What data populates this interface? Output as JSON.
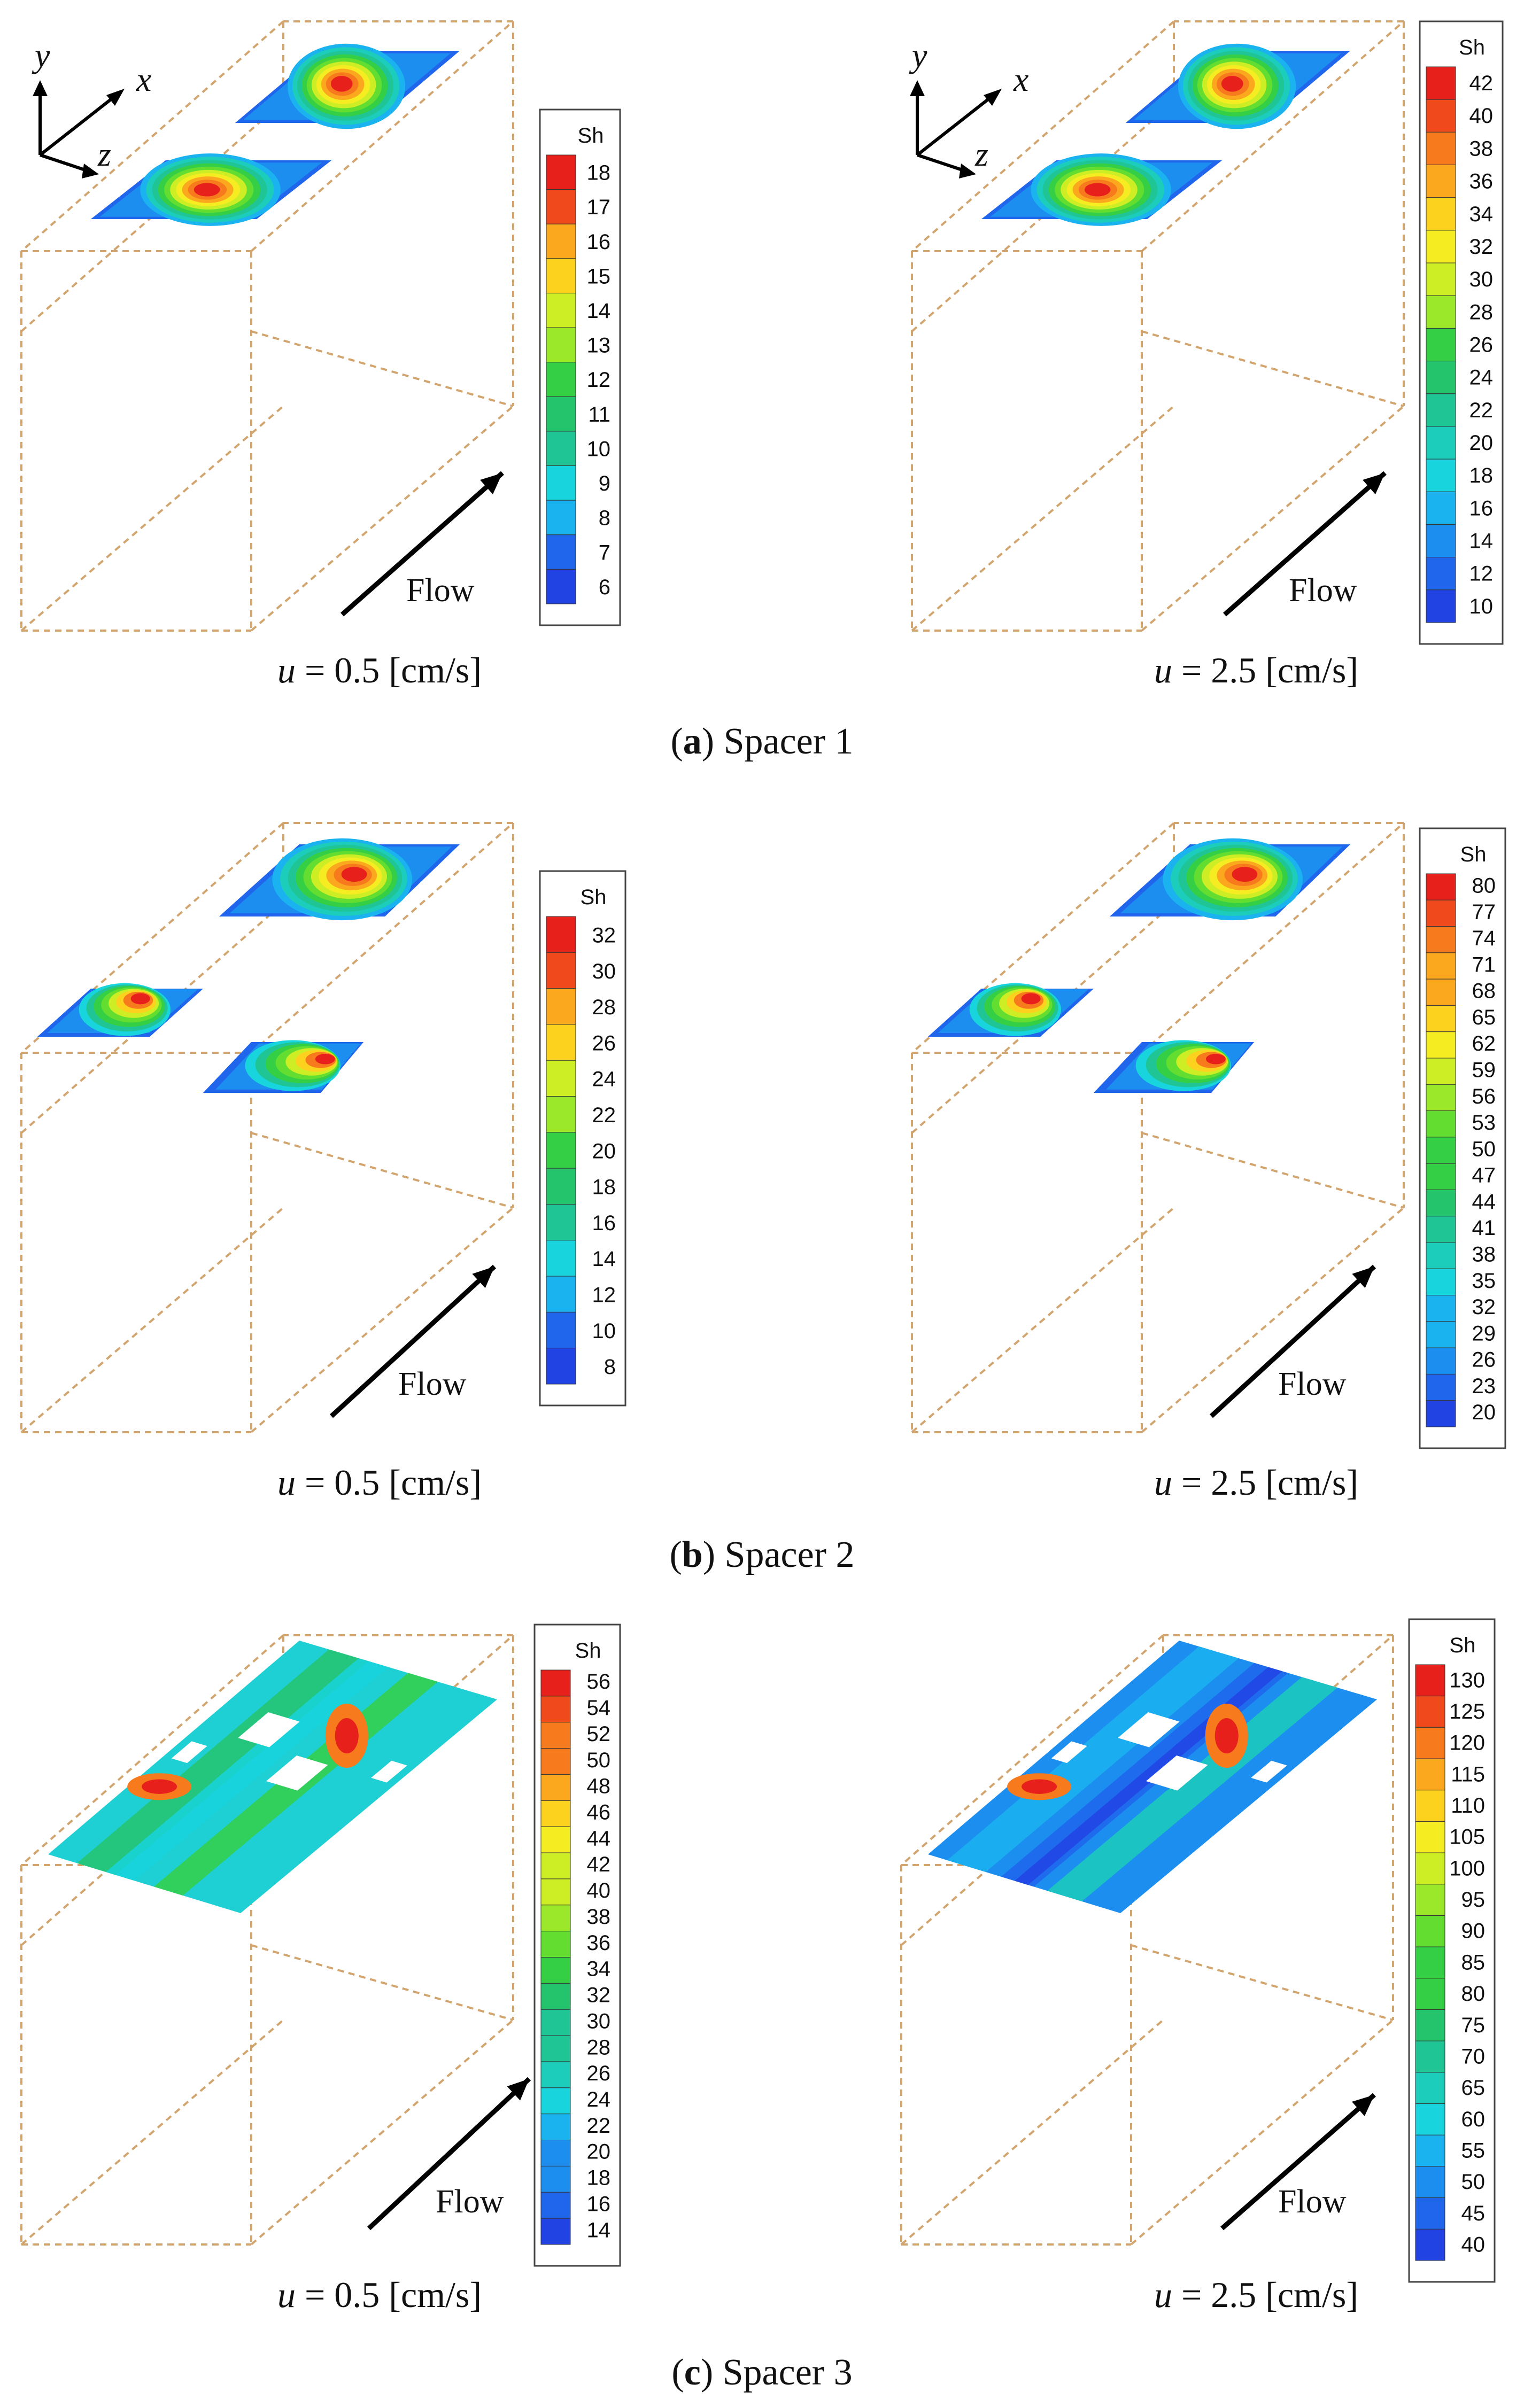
{
  "figure": {
    "panels": [
      {
        "id": "spacer1",
        "caption_letter": "a",
        "caption_text": " Spacer 1",
        "cases": [
          {
            "u_prefix": "u",
            "u_text": " = 0.5 [cm/s]",
            "legend_title": "Sh",
            "legend_values": [
              "18",
              "17",
              "16",
              "15",
              "14",
              "13",
              "12",
              "11",
              "10",
              "9",
              "8",
              "7",
              "6"
            ]
          },
          {
            "u_prefix": "u",
            "u_text": " = 2.5 [cm/s]",
            "legend_title": "Sh",
            "legend_values": [
              "42",
              "40",
              "38",
              "36",
              "34",
              "32",
              "30",
              "28",
              "26",
              "24",
              "22",
              "20",
              "18",
              "16",
              "14",
              "12",
              "10"
            ]
          }
        ]
      },
      {
        "id": "spacer2",
        "caption_letter": "b",
        "caption_text": " Spacer 2",
        "cases": [
          {
            "u_prefix": "u",
            "u_text": " = 0.5 [cm/s]",
            "legend_title": "Sh",
            "legend_values": [
              "32",
              "30",
              "28",
              "26",
              "24",
              "22",
              "20",
              "18",
              "16",
              "14",
              "12",
              "10",
              "8"
            ]
          },
          {
            "u_prefix": "u",
            "u_text": " = 2.5 [cm/s]",
            "legend_title": "Sh",
            "legend_values": [
              "80",
              "77",
              "74",
              "71",
              "68",
              "65",
              "62",
              "59",
              "56",
              "53",
              "50",
              "47",
              "44",
              "41",
              "38",
              "35",
              "32",
              "29",
              "26",
              "23",
              "20"
            ]
          }
        ]
      },
      {
        "id": "spacer3",
        "caption_letter": "c",
        "caption_text": " Spacer 3",
        "cases": [
          {
            "u_prefix": "u",
            "u_text": " = 0.5 [cm/s]",
            "legend_title": "Sh",
            "legend_values": [
              "56",
              "54",
              "52",
              "50",
              "48",
              "46",
              "44",
              "42",
              "40",
              "38",
              "36",
              "34",
              "32",
              "30",
              "28",
              "26",
              "24",
              "22",
              "20",
              "18",
              "16",
              "14"
            ]
          },
          {
            "u_prefix": "u",
            "u_text": " = 2.5 [cm/s]",
            "legend_title": "Sh",
            "legend_values": [
              "130",
              "125",
              "120",
              "115",
              "110",
              "105",
              "100",
              "95",
              "90",
              "85",
              "80",
              "75",
              "70",
              "65",
              "60",
              "55",
              "50",
              "45",
              "40"
            ]
          }
        ]
      }
    ],
    "flow_label": "Flow",
    "axis_labels": {
      "x": "x",
      "y": "y",
      "z": "z"
    },
    "colormap": [
      "#e8201c",
      "#f04a1c",
      "#f77a1c",
      "#fba81e",
      "#fdd21f",
      "#f6ec22",
      "#cdee25",
      "#9be82a",
      "#63dd30",
      "#35cf45",
      "#24c46c",
      "#1fc595",
      "#1ccdbb",
      "#18d4dc",
      "#1ab3ef",
      "#1c8ef0",
      "#1f66ec",
      "#2243e4"
    ],
    "box_line_color": "#d2a46e"
  }
}
